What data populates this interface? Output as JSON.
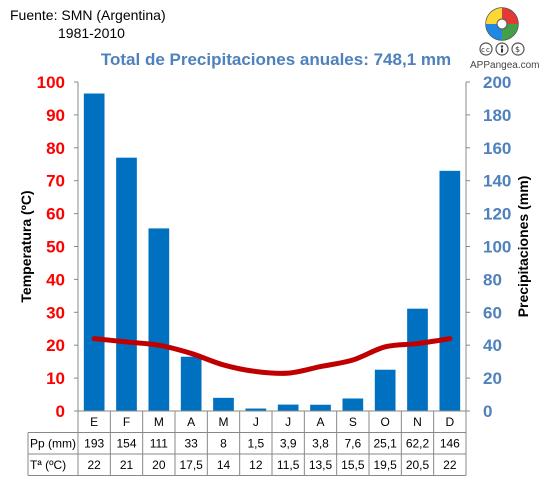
{
  "source": {
    "line1": "Fuente: SMN (Argentina)",
    "line2": "1981-2010"
  },
  "brand": {
    "name": "APPangea.com",
    "license_icons": "cc-by-nc",
    "logo_icon": "puzzle-globe-icon"
  },
  "colors": {
    "bars": "#0070c0",
    "temperature": "#c00000",
    "title": "#4f81bd",
    "precip_axis": "#4f81bd",
    "temp_axis": "#ff0000"
  },
  "chart_data": {
    "type": "bar-line",
    "title": "Total de Precipitaciones anuales: 748,1 mm",
    "categories": [
      "E",
      "F",
      "M",
      "A",
      "M",
      "J",
      "J",
      "A",
      "S",
      "O",
      "N",
      "D"
    ],
    "series": [
      {
        "name": "Pp (mm)",
        "axis": "right",
        "type": "bar",
        "values": [
          193,
          154,
          111,
          33,
          8,
          1.5,
          3.9,
          3.8,
          7.6,
          25.1,
          62.2,
          146
        ],
        "labels": [
          "193",
          "154",
          "111",
          "33",
          "8",
          "1,5",
          "3,9",
          "3,8",
          "7,6",
          "25,1",
          "62,2",
          "146"
        ]
      },
      {
        "name": "Tª (ºC)",
        "axis": "left",
        "type": "line",
        "values": [
          22,
          21,
          20,
          17.5,
          14,
          12,
          11.5,
          13.5,
          15.5,
          19.5,
          20.5,
          22
        ],
        "labels": [
          "22",
          "21",
          "20",
          "17,5",
          "14",
          "12",
          "11,5",
          "13,5",
          "15,5",
          "19,5",
          "20,5",
          "22"
        ]
      }
    ],
    "ylabel_left": "Temperatura (ºC)",
    "ylabel_right": "Precipitaciones (mm)",
    "ylim_left": [
      0,
      100
    ],
    "ylim_right": [
      0,
      200
    ],
    "yticks_left": [
      0,
      10,
      20,
      30,
      40,
      50,
      60,
      70,
      80,
      90,
      100
    ],
    "yticks_right": [
      0,
      20,
      40,
      60,
      80,
      100,
      120,
      140,
      160,
      180,
      200
    ],
    "table_rows": [
      "Pp (mm)",
      "Tª (ºC)"
    ],
    "grid": false,
    "legend": "none"
  }
}
